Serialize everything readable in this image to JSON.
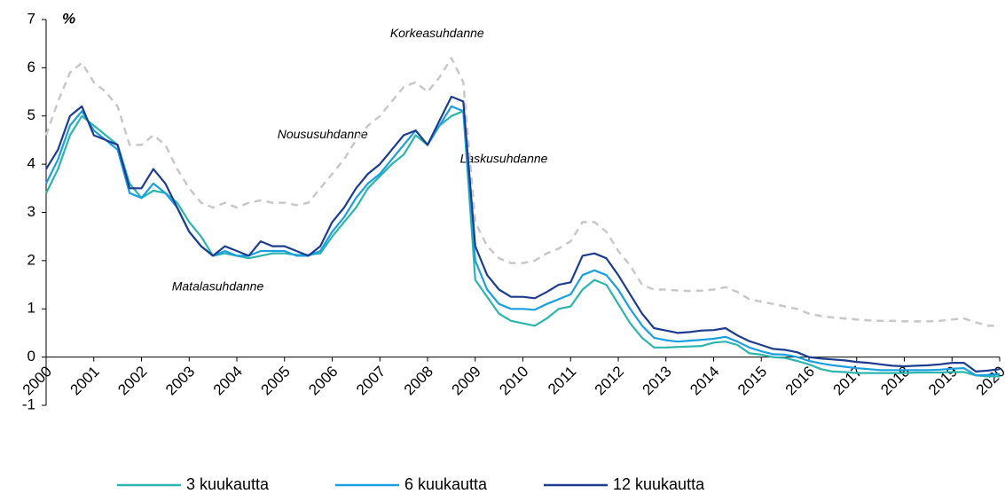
{
  "chart_data": {
    "type": "line",
    "unit_label": "%",
    "annotations": [
      {
        "text": "Korkeasuhdanne",
        "x": 2008.2,
        "y": 6.7
      },
      {
        "text": "Noususuhdanne",
        "x": 2005.8,
        "y": 4.6
      },
      {
        "text": "Laskusuhdanne",
        "x": 2009.6,
        "y": 4.1
      },
      {
        "text": "Matalasuhdanne",
        "x": 2003.6,
        "y": 1.45
      }
    ],
    "x": [
      2000,
      2000.25,
      2000.5,
      2000.75,
      2001,
      2001.25,
      2001.5,
      2001.75,
      2002,
      2002.25,
      2002.5,
      2002.75,
      2003,
      2003.25,
      2003.5,
      2003.75,
      2004,
      2004.25,
      2004.5,
      2004.75,
      2005,
      2005.25,
      2005.5,
      2005.75,
      2006,
      2006.25,
      2006.5,
      2006.75,
      2007,
      2007.25,
      2007.5,
      2007.75,
      2008,
      2008.25,
      2008.5,
      2008.75,
      2009,
      2009.25,
      2009.5,
      2009.75,
      2010,
      2010.25,
      2010.5,
      2010.75,
      2011,
      2011.25,
      2011.5,
      2011.75,
      2012,
      2012.25,
      2012.5,
      2012.75,
      2013,
      2013.25,
      2013.5,
      2013.75,
      2014,
      2014.25,
      2014.5,
      2014.75,
      2015,
      2015.25,
      2015.5,
      2015.75,
      2016,
      2016.25,
      2016.5,
      2016.75,
      2017,
      2017.25,
      2017.5,
      2017.75,
      2018,
      2018.25,
      2018.5,
      2018.75,
      2019,
      2019.25,
      2019.5,
      2019.75,
      2020
    ],
    "series": [
      {
        "color": "#c8c8c8",
        "style": "dashed",
        "values": [
          4.6,
          5.3,
          5.9,
          6.1,
          5.7,
          5.5,
          5.2,
          4.4,
          4.4,
          4.6,
          4.4,
          3.9,
          3.5,
          3.2,
          3.1,
          3.2,
          3.1,
          3.2,
          3.25,
          3.2,
          3.2,
          3.15,
          3.2,
          3.5,
          3.8,
          4.1,
          4.5,
          4.8,
          5.0,
          5.3,
          5.6,
          5.7,
          5.5,
          5.8,
          6.2,
          5.7,
          2.8,
          2.3,
          2.05,
          1.95,
          1.95,
          2.0,
          2.15,
          2.25,
          2.4,
          2.8,
          2.8,
          2.6,
          2.2,
          1.9,
          1.5,
          1.4,
          1.4,
          1.38,
          1.37,
          1.38,
          1.4,
          1.45,
          1.35,
          1.2,
          1.15,
          1.1,
          1.05,
          1.0,
          0.9,
          0.85,
          0.82,
          0.8,
          0.78,
          0.76,
          0.75,
          0.75,
          0.74,
          0.74,
          0.74,
          0.75,
          0.78,
          0.8,
          0.72,
          0.65,
          0.65
        ]
      },
      {
        "name": "3 kuukautta",
        "color": "#2bb5ad",
        "values": [
          3.4,
          3.9,
          4.6,
          5.0,
          4.8,
          4.6,
          4.4,
          3.6,
          3.3,
          3.45,
          3.4,
          3.2,
          2.8,
          2.5,
          2.1,
          2.15,
          2.1,
          2.05,
          2.1,
          2.15,
          2.15,
          2.12,
          2.12,
          2.15,
          2.5,
          2.8,
          3.1,
          3.5,
          3.75,
          4.0,
          4.2,
          4.6,
          4.4,
          4.8,
          5.0,
          5.1,
          1.6,
          1.25,
          0.9,
          0.75,
          0.7,
          0.65,
          0.8,
          1.0,
          1.05,
          1.4,
          1.6,
          1.5,
          1.1,
          0.7,
          0.4,
          0.2,
          0.2,
          0.21,
          0.22,
          0.23,
          0.3,
          0.32,
          0.25,
          0.08,
          0.05,
          0.0,
          -0.02,
          -0.08,
          -0.15,
          -0.25,
          -0.3,
          -0.31,
          -0.33,
          -0.33,
          -0.33,
          -0.33,
          -0.33,
          -0.32,
          -0.32,
          -0.32,
          -0.31,
          -0.31,
          -0.38,
          -0.4,
          -0.4
        ]
      },
      {
        "name": "6 kuukautta",
        "color": "#1a9fe0",
        "values": [
          3.6,
          4.1,
          4.8,
          5.1,
          4.7,
          4.5,
          4.3,
          3.4,
          3.3,
          3.6,
          3.4,
          3.1,
          2.6,
          2.3,
          2.1,
          2.2,
          2.1,
          2.1,
          2.2,
          2.2,
          2.2,
          2.1,
          2.1,
          2.2,
          2.6,
          2.9,
          3.3,
          3.6,
          3.8,
          4.1,
          4.4,
          4.7,
          4.4,
          4.8,
          5.2,
          5.1,
          2.0,
          1.4,
          1.1,
          1.0,
          1.0,
          0.98,
          1.1,
          1.2,
          1.3,
          1.7,
          1.8,
          1.7,
          1.4,
          1.0,
          0.65,
          0.4,
          0.35,
          0.32,
          0.34,
          0.36,
          0.38,
          0.42,
          0.32,
          0.2,
          0.12,
          0.06,
          0.05,
          0.0,
          -0.08,
          -0.13,
          -0.17,
          -0.2,
          -0.23,
          -0.25,
          -0.27,
          -0.27,
          -0.27,
          -0.27,
          -0.27,
          -0.26,
          -0.24,
          -0.23,
          -0.38,
          -0.37,
          -0.35
        ]
      },
      {
        "name": "12 kuukautta",
        "color": "#1d3c8f",
        "values": [
          3.9,
          4.3,
          5.0,
          5.2,
          4.6,
          4.5,
          4.4,
          3.5,
          3.5,
          3.9,
          3.6,
          3.1,
          2.6,
          2.3,
          2.1,
          2.3,
          2.2,
          2.1,
          2.4,
          2.3,
          2.3,
          2.2,
          2.1,
          2.3,
          2.8,
          3.1,
          3.5,
          3.8,
          4.0,
          4.3,
          4.6,
          4.7,
          4.4,
          4.9,
          5.4,
          5.3,
          2.3,
          1.7,
          1.4,
          1.25,
          1.25,
          1.22,
          1.35,
          1.5,
          1.55,
          2.1,
          2.15,
          2.05,
          1.7,
          1.3,
          0.9,
          0.6,
          0.55,
          0.5,
          0.52,
          0.55,
          0.56,
          0.6,
          0.45,
          0.33,
          0.25,
          0.17,
          0.15,
          0.1,
          0.0,
          -0.03,
          -0.05,
          -0.07,
          -0.1,
          -0.12,
          -0.15,
          -0.18,
          -0.19,
          -0.18,
          -0.17,
          -0.15,
          -0.12,
          -0.12,
          -0.3,
          -0.28,
          -0.25
        ]
      }
    ],
    "xlim": [
      2000,
      2020
    ],
    "xticks": [
      2000,
      2001,
      2002,
      2003,
      2004,
      2005,
      2006,
      2007,
      2008,
      2009,
      2010,
      2011,
      2012,
      2013,
      2014,
      2015,
      2016,
      2017,
      2018,
      2019,
      2020
    ],
    "ylim": [
      -1,
      7
    ],
    "yticks": [
      -1,
      0,
      1,
      2,
      3,
      4,
      5,
      6,
      7
    ],
    "grid": false
  }
}
